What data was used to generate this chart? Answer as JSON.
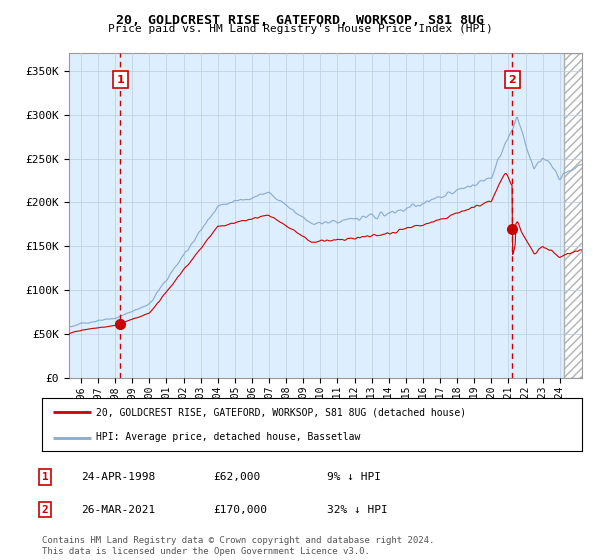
{
  "title": "20, GOLDCREST RISE, GATEFORD, WORKSOP, S81 8UG",
  "subtitle": "Price paid vs. HM Land Registry's House Price Index (HPI)",
  "ylabel_ticks": [
    "£0",
    "£50K",
    "£100K",
    "£150K",
    "£200K",
    "£250K",
    "£300K",
    "£350K"
  ],
  "ytick_values": [
    0,
    50000,
    100000,
    150000,
    200000,
    250000,
    300000,
    350000
  ],
  "ylim": [
    0,
    370000
  ],
  "xlim_start": 1995.3,
  "xlim_end": 2025.3,
  "hatch_start": 2024.25,
  "purchase1_date": 1998.31,
  "purchase1_price": 62000,
  "purchase2_date": 2021.23,
  "purchase2_price": 170000,
  "red_line_color": "#cc0000",
  "blue_line_color": "#88aacc",
  "chart_bg_color": "#ddeeff",
  "grid_color": "#bbccdd",
  "background_color": "#ffffff",
  "legend_line1": "20, GOLDCREST RISE, GATEFORD, WORKSOP, S81 8UG (detached house)",
  "legend_line2": "HPI: Average price, detached house, Bassetlaw",
  "table_row1": [
    "1",
    "24-APR-1998",
    "£62,000",
    "9% ↓ HPI"
  ],
  "table_row2": [
    "2",
    "26-MAR-2021",
    "£170,000",
    "32% ↓ HPI"
  ],
  "footer": "Contains HM Land Registry data © Crown copyright and database right 2024.\nThis data is licensed under the Open Government Licence v3.0.",
  "xtick_years": [
    1996,
    1997,
    1998,
    1999,
    2000,
    2001,
    2002,
    2003,
    2004,
    2005,
    2006,
    2007,
    2008,
    2009,
    2010,
    2011,
    2012,
    2013,
    2014,
    2015,
    2016,
    2017,
    2018,
    2019,
    2020,
    2021,
    2022,
    2023,
    2024
  ]
}
